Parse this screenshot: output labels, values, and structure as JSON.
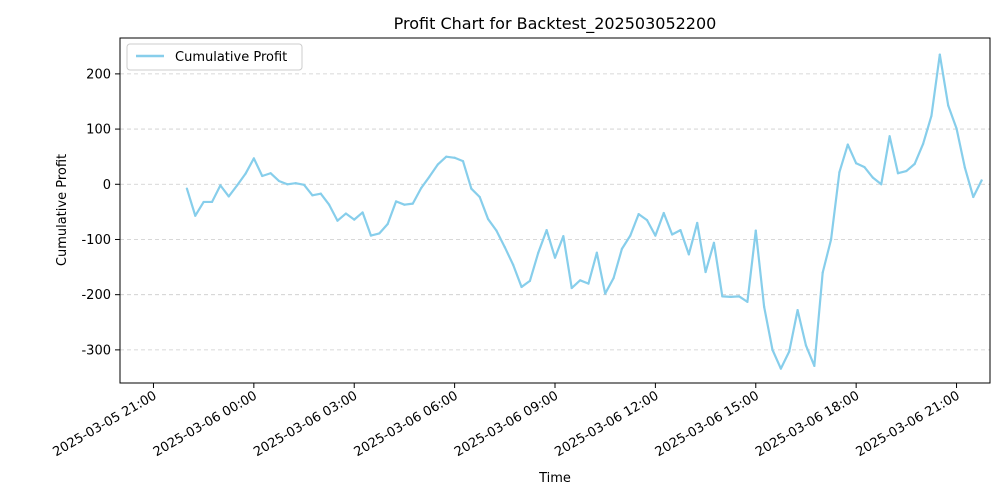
{
  "chart_data": {
    "type": "line",
    "title": "Profit Chart for Backtest_202503052200",
    "xlabel": "Time",
    "ylabel": "Cumulative Profit",
    "grid": "y-dashed",
    "legend_position": "top-left",
    "colors": {
      "line": "#87CEEB",
      "grid": "#cccccc",
      "axis": "#000000"
    },
    "xlim": [
      "2025-03-05 20:00",
      "2025-03-06 22:00"
    ],
    "ylim": [
      -360,
      265
    ],
    "x_ticks": [
      {
        "value": "2025-03-05 21:00",
        "label": "2025-03-05 21:00"
      },
      {
        "value": "2025-03-06 00:00",
        "label": "2025-03-06 00:00"
      },
      {
        "value": "2025-03-06 03:00",
        "label": "2025-03-06 03:00"
      },
      {
        "value": "2025-03-06 06:00",
        "label": "2025-03-06 06:00"
      },
      {
        "value": "2025-03-06 09:00",
        "label": "2025-03-06 09:00"
      },
      {
        "value": "2025-03-06 12:00",
        "label": "2025-03-06 12:00"
      },
      {
        "value": "2025-03-06 15:00",
        "label": "2025-03-06 15:00"
      },
      {
        "value": "2025-03-06 18:00",
        "label": "2025-03-06 18:00"
      },
      {
        "value": "2025-03-06 21:00",
        "label": "2025-03-06 21:00"
      }
    ],
    "y_ticks": [
      200,
      100,
      0,
      -100,
      -200,
      -300
    ],
    "series": [
      {
        "name": "Cumulative Profit",
        "x": [
          "2025-03-05 22:00",
          "2025-03-05 22:15",
          "2025-03-05 22:30",
          "2025-03-05 22:45",
          "2025-03-05 23:00",
          "2025-03-05 23:15",
          "2025-03-05 23:30",
          "2025-03-05 23:45",
          "2025-03-06 00:00",
          "2025-03-06 00:15",
          "2025-03-06 00:30",
          "2025-03-06 00:45",
          "2025-03-06 01:00",
          "2025-03-06 01:15",
          "2025-03-06 01:30",
          "2025-03-06 01:45",
          "2025-03-06 02:00",
          "2025-03-06 02:15",
          "2025-03-06 02:30",
          "2025-03-06 02:45",
          "2025-03-06 03:00",
          "2025-03-06 03:15",
          "2025-03-06 03:30",
          "2025-03-06 03:45",
          "2025-03-06 04:00",
          "2025-03-06 04:15",
          "2025-03-06 04:30",
          "2025-03-06 04:45",
          "2025-03-06 05:00",
          "2025-03-06 05:15",
          "2025-03-06 05:30",
          "2025-03-06 05:45",
          "2025-03-06 06:00",
          "2025-03-06 06:15",
          "2025-03-06 06:30",
          "2025-03-06 06:45",
          "2025-03-06 07:00",
          "2025-03-06 07:15",
          "2025-03-06 07:30",
          "2025-03-06 07:45",
          "2025-03-06 08:00",
          "2025-03-06 08:15",
          "2025-03-06 08:30",
          "2025-03-06 08:45",
          "2025-03-06 09:00",
          "2025-03-06 09:15",
          "2025-03-06 09:30",
          "2025-03-06 09:45",
          "2025-03-06 10:00",
          "2025-03-06 10:15",
          "2025-03-06 10:30",
          "2025-03-06 10:45",
          "2025-03-06 11:00",
          "2025-03-06 11:15",
          "2025-03-06 11:30",
          "2025-03-06 11:45",
          "2025-03-06 12:00",
          "2025-03-06 12:15",
          "2025-03-06 12:30",
          "2025-03-06 12:45",
          "2025-03-06 13:00",
          "2025-03-06 13:15",
          "2025-03-06 13:30",
          "2025-03-06 13:45",
          "2025-03-06 14:00",
          "2025-03-06 14:15",
          "2025-03-06 14:30",
          "2025-03-06 14:45",
          "2025-03-06 15:00",
          "2025-03-06 15:15",
          "2025-03-06 15:30",
          "2025-03-06 15:45",
          "2025-03-06 16:00",
          "2025-03-06 16:15",
          "2025-03-06 16:30",
          "2025-03-06 16:45",
          "2025-03-06 17:00",
          "2025-03-06 17:15",
          "2025-03-06 17:30",
          "2025-03-06 17:45",
          "2025-03-06 18:00",
          "2025-03-06 18:15",
          "2025-03-06 18:30",
          "2025-03-06 18:45",
          "2025-03-06 19:00",
          "2025-03-06 19:15",
          "2025-03-06 19:30",
          "2025-03-06 19:45",
          "2025-03-06 20:00",
          "2025-03-06 20:15",
          "2025-03-06 20:30",
          "2025-03-06 20:45",
          "2025-03-06 21:00",
          "2025-03-06 21:15",
          "2025-03-06 21:30",
          "2025-03-06 21:45"
        ],
        "values": [
          -8,
          -57,
          -32,
          -32,
          -2,
          -22,
          -2,
          19,
          47,
          15,
          20,
          6,
          0,
          2,
          -1,
          -20,
          -17,
          -37,
          -66,
          -53,
          -64,
          -51,
          -93,
          -89,
          -72,
          -31,
          -37,
          -35,
          -7,
          14,
          36,
          50,
          48,
          42,
          -8,
          -23,
          -63,
          -84,
          -114,
          -146,
          -186,
          -175,
          -124,
          -83,
          -133,
          -94,
          -188,
          -174,
          -180,
          -124,
          -198,
          -170,
          -117,
          -93,
          -54,
          -65,
          -93,
          -52,
          -91,
          -83,
          -127,
          -70,
          -159,
          -106,
          -203,
          -204,
          -203,
          -213,
          -84,
          -222,
          -300,
          -334,
          -303,
          -228,
          -292,
          -329,
          -160,
          -100,
          22,
          72,
          38,
          31,
          12,
          0,
          87,
          20,
          24,
          37,
          73,
          124,
          235,
          143,
          101,
          30,
          -23,
          7
        ]
      }
    ]
  }
}
